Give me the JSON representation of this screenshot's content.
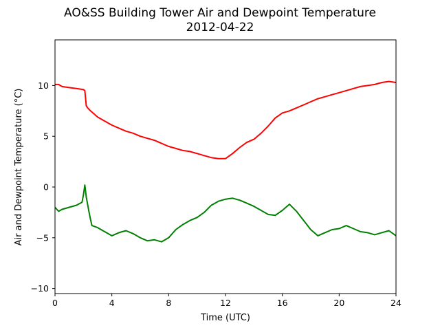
{
  "chart_data": {
    "type": "line",
    "title": "AO&SS Building Tower Air and Dewpoint Temperature",
    "subtitle": "2012-04-22",
    "xlabel": "Time (UTC)",
    "ylabel": "Air and Dewpoint Temperature (°C)",
    "xlim": [
      0,
      24
    ],
    "ylim": [
      -10.5,
      14.5
    ],
    "xticks": [
      0,
      4,
      8,
      12,
      16,
      20,
      24
    ],
    "yticks": [
      -10,
      -5,
      0,
      5,
      10
    ],
    "grid": false,
    "legend": false,
    "series": [
      {
        "color": "#ff0000",
        "x": [
          0,
          0.25,
          0.5,
          1.0,
          1.5,
          2.0,
          2.1,
          2.2,
          2.3,
          2.5,
          3.0,
          3.5,
          4.0,
          4.5,
          5.0,
          5.5,
          6.0,
          6.5,
          7.0,
          7.5,
          8.0,
          8.5,
          9.0,
          9.5,
          10.0,
          10.5,
          11.0,
          11.5,
          12.0,
          12.5,
          13.0,
          13.5,
          14.0,
          14.5,
          15.0,
          15.5,
          16.0,
          16.5,
          17.0,
          17.5,
          18.0,
          18.5,
          19.0,
          19.5,
          20.0,
          20.5,
          21.0,
          21.5,
          22.0,
          22.5,
          23.0,
          23.5,
          24.0
        ],
        "y": [
          10.1,
          10.1,
          9.9,
          9.8,
          9.7,
          9.6,
          9.5,
          8.0,
          7.8,
          7.5,
          6.9,
          6.5,
          6.1,
          5.8,
          5.5,
          5.3,
          5.0,
          4.8,
          4.6,
          4.3,
          4.0,
          3.8,
          3.6,
          3.5,
          3.3,
          3.1,
          2.9,
          2.8,
          2.8,
          3.3,
          3.9,
          4.4,
          4.7,
          5.3,
          6.0,
          6.8,
          7.3,
          7.5,
          7.8,
          8.1,
          8.4,
          8.7,
          8.9,
          9.1,
          9.3,
          9.5,
          9.7,
          9.9,
          10.0,
          10.1,
          10.3,
          10.4,
          10.3
        ]
      },
      {
        "color": "#008000",
        "x": [
          0,
          0.25,
          0.5,
          1.0,
          1.5,
          1.9,
          2.0,
          2.1,
          2.2,
          2.4,
          2.5,
          2.6,
          3.0,
          3.5,
          4.0,
          4.5,
          5.0,
          5.5,
          6.0,
          6.5,
          7.0,
          7.5,
          8.0,
          8.5,
          9.0,
          9.5,
          10.0,
          10.5,
          11.0,
          11.5,
          12.0,
          12.5,
          13.0,
          13.5,
          14.0,
          14.5,
          15.0,
          15.5,
          16.0,
          16.5,
          17.0,
          17.5,
          18.0,
          18.5,
          19.0,
          19.5,
          20.0,
          20.5,
          21.0,
          21.5,
          22.0,
          22.5,
          23.0,
          23.5,
          24.0
        ],
        "y": [
          -2.0,
          -2.4,
          -2.2,
          -2.0,
          -1.8,
          -1.5,
          -0.8,
          0.2,
          -1.0,
          -2.5,
          -3.2,
          -3.8,
          -4.0,
          -4.4,
          -4.8,
          -4.5,
          -4.3,
          -4.6,
          -5.0,
          -5.3,
          -5.2,
          -5.4,
          -5.0,
          -4.2,
          -3.7,
          -3.3,
          -3.0,
          -2.5,
          -1.8,
          -1.4,
          -1.2,
          -1.1,
          -1.3,
          -1.6,
          -1.9,
          -2.3,
          -2.7,
          -2.8,
          -2.3,
          -1.7,
          -2.4,
          -3.3,
          -4.2,
          -4.8,
          -4.5,
          -4.2,
          -4.1,
          -3.8,
          -4.1,
          -4.4,
          -4.5,
          -4.7,
          -4.5,
          -4.3,
          -4.8
        ]
      }
    ]
  }
}
